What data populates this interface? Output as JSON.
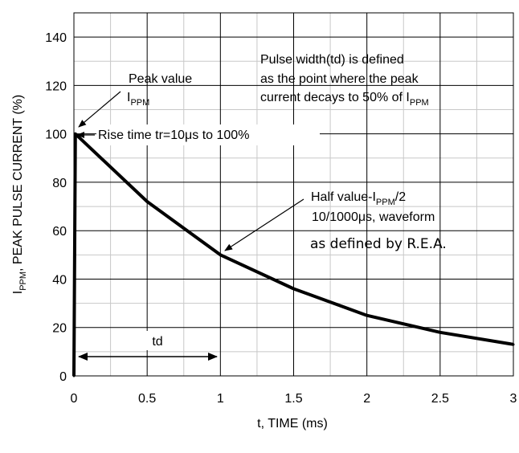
{
  "chart_data": {
    "type": "line",
    "xlabel": "t, TIME (ms)",
    "ylabel": {
      "prefix": "I",
      "sub": "PPM",
      "suffix": ", PEAK PULSE CURRENT (%)"
    },
    "xlim": [
      0,
      3
    ],
    "ylim": [
      0,
      150
    ],
    "x_ticks": [
      "0",
      "0.5",
      "1",
      "1.5",
      "2",
      "2.5",
      "3"
    ],
    "y_ticks": [
      "0",
      "20",
      "40",
      "60",
      "80",
      "100",
      "120",
      "140"
    ],
    "grid": true,
    "series": [
      {
        "x": [
          0,
          0.01,
          0.5,
          1.0,
          1.5,
          2.0,
          2.5,
          3.0
        ],
        "y": [
          0,
          100,
          72,
          50,
          36,
          25,
          18,
          13
        ]
      }
    ],
    "annotations": {
      "peak": {
        "line1": "Peak value",
        "line2_main": "I",
        "line2_sub": "PPM"
      },
      "pulse_width": {
        "line1": "Pulse width(td) is defined",
        "line2": "as the point where the peak",
        "line3_main": "current decays to 50% of I",
        "line3_sub": "PPM"
      },
      "rise_time": "Rise time tr=10μs to 100%",
      "half_value": {
        "line1_main": "Half value-I",
        "line1_sub": "PPM",
        "line1_tail": "/2",
        "line2": "10/1000μs, waveform",
        "line3": "as defined by R.E.A."
      },
      "td": "td"
    }
  }
}
